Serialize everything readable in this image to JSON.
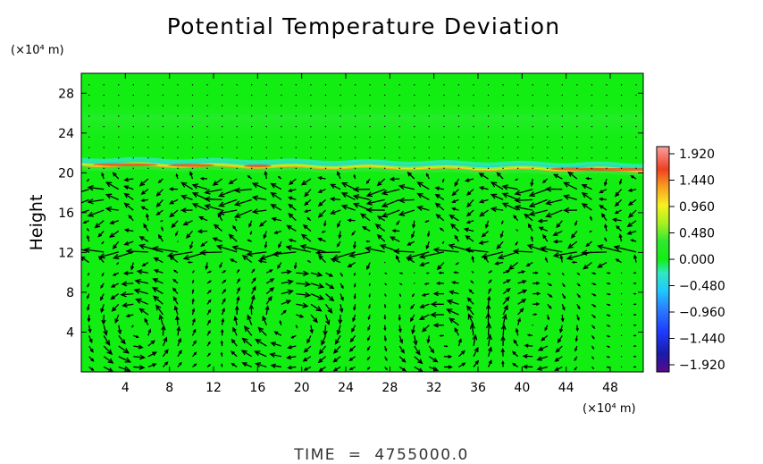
{
  "chart_data": {
    "type": "heatmap",
    "title": "Potential Temperature Deviation",
    "ylabel": "Height",
    "y_units": "(×10⁴ m)",
    "x_units": "(×10⁴ m)",
    "xlim": [
      0,
      51
    ],
    "ylim": [
      0,
      30
    ],
    "x_ticks": [
      "4",
      "8",
      "12",
      "16",
      "20",
      "24",
      "28",
      "32",
      "36",
      "40",
      "44",
      "48"
    ],
    "x_tick_values": [
      4,
      8,
      12,
      16,
      20,
      24,
      28,
      32,
      36,
      40,
      44,
      48
    ],
    "y_ticks": [
      "4",
      "8",
      "12",
      "16",
      "20",
      "24",
      "28"
    ],
    "y_tick_values": [
      4,
      8,
      12,
      16,
      20,
      24,
      28
    ],
    "colorbar": {
      "labels": [
        "1.920",
        "1.440",
        "0.960",
        "0.480",
        "0.000",
        "−0.480",
        "−0.960",
        "−1.440",
        "−1.920"
      ],
      "min": -1.92,
      "max": 1.92
    },
    "field": {
      "background_value": 0.0,
      "inversion_layer": {
        "height": 20.5,
        "peak_value": 1.4,
        "description_value_range": [
          0.48,
          1.92
        ]
      }
    },
    "vectors": "wind vectors overlaid (circulation cells below 10, strong flow near 12 and 16–18)",
    "grid": false,
    "footer": "TIME  =  4755000.0"
  },
  "colors": {
    "background_field": "#12ee12",
    "axis": "#000000"
  }
}
